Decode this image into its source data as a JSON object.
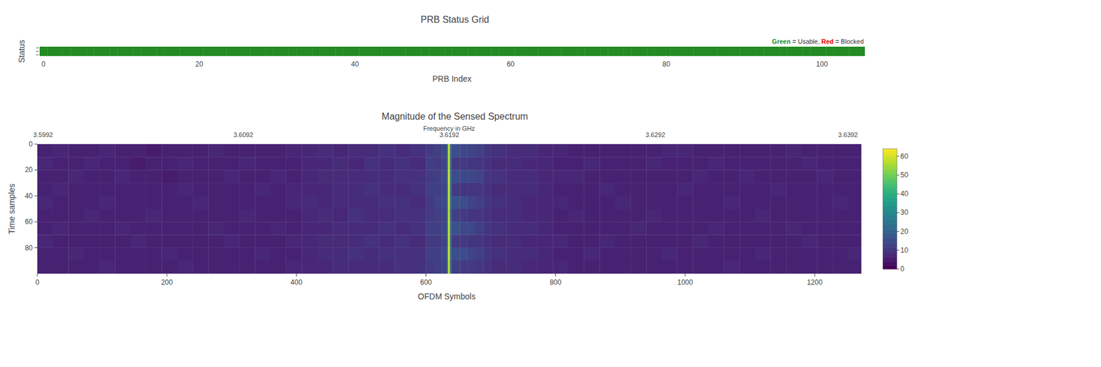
{
  "chart_data": [
    {
      "type": "heatmap",
      "title": "PRB Status Grid",
      "x_label": "PRB Index",
      "y_label": "Status",
      "x": [
        0,
        1,
        2,
        3,
        4,
        5,
        6,
        7,
        8,
        9,
        10,
        11,
        12,
        13,
        14,
        15,
        16,
        17,
        18,
        19,
        20,
        21,
        22,
        23,
        24,
        25,
        26,
        27,
        28,
        29,
        30,
        31,
        32,
        33,
        34,
        35,
        36,
        37,
        38,
        39,
        40,
        41,
        42,
        43,
        44,
        45,
        46,
        47,
        48,
        49,
        50,
        51,
        52,
        53,
        54,
        55,
        56,
        57,
        58,
        59,
        60,
        61,
        62,
        63,
        64,
        65,
        66,
        67,
        68,
        69,
        70,
        71,
        72,
        73,
        74,
        75,
        76,
        77,
        78,
        79,
        80,
        81,
        82,
        83,
        84,
        85,
        86,
        87,
        88,
        89,
        90,
        91,
        92,
        93,
        94,
        95,
        96,
        97,
        98,
        99,
        100,
        101,
        102,
        103,
        104,
        105
      ],
      "values": [
        1,
        1,
        1,
        1,
        1,
        1,
        1,
        1,
        1,
        1,
        1,
        1,
        1,
        1,
        1,
        1,
        1,
        1,
        1,
        1,
        1,
        1,
        1,
        1,
        1,
        1,
        1,
        1,
        1,
        1,
        1,
        1,
        1,
        1,
        1,
        1,
        1,
        1,
        1,
        1,
        1,
        1,
        1,
        1,
        1,
        1,
        1,
        1,
        1,
        1,
        1,
        1,
        1,
        1,
        1,
        1,
        1,
        1,
        1,
        1,
        1,
        1,
        1,
        1,
        1,
        1,
        1,
        1,
        1,
        1,
        1,
        1,
        1,
        1,
        1,
        1,
        1,
        1,
        1,
        1,
        1,
        1,
        1,
        1,
        1,
        1,
        1,
        1,
        1,
        1,
        1,
        1,
        1,
        1,
        1,
        1,
        1,
        1,
        1,
        1,
        1,
        1,
        1,
        1,
        1,
        1
      ],
      "xlim": [
        -0.5,
        105.5
      ],
      "xticks": [
        0,
        20,
        40,
        60,
        80,
        100
      ],
      "status_legend": [
        {
          "name": "Green",
          "label": "= Usable,",
          "color": "#228b22",
          "value": 1
        },
        {
          "name": "Red",
          "label": "= Blocked",
          "color": "#e00000",
          "value": 0
        }
      ],
      "legend": "top-right",
      "tick_labels": "x"
    },
    {
      "type": "heatmap",
      "title": "Magnitude of the Sensed Spectrum",
      "x_label": "OFDM Symbols",
      "x2_label": "Frequency in GHz",
      "y_label": "Time samples",
      "xlim": [
        0,
        1272
      ],
      "xticks": [
        0,
        200,
        400,
        600,
        800,
        1000,
        1200
      ],
      "x2lim": [
        3.5992,
        3.6392
      ],
      "x2ticks": [
        3.5992,
        3.6092,
        3.6192,
        3.6292,
        3.6392
      ],
      "ylim": [
        0,
        100
      ],
      "yticks": [
        0,
        20,
        40,
        60,
        80
      ],
      "x_edges": [
        0,
        24,
        48,
        72,
        96,
        120,
        144,
        168,
        192,
        216,
        240,
        264,
        288,
        312,
        336,
        360,
        384,
        408,
        432,
        456,
        480,
        504,
        528,
        552,
        576,
        600,
        612,
        624,
        632,
        634,
        637,
        640,
        652,
        664,
        676,
        688,
        700,
        724,
        748,
        772,
        796,
        820,
        844,
        868,
        892,
        916,
        940,
        964,
        988,
        1012,
        1036,
        1060,
        1084,
        1108,
        1132,
        1156,
        1180,
        1204,
        1228,
        1252,
        1272
      ],
      "y_edges": [
        0,
        10,
        20,
        30,
        40,
        50,
        60,
        70,
        80,
        90,
        100
      ],
      "z": [
        [
          6,
          7,
          6,
          6,
          7,
          6,
          6,
          5,
          6,
          6,
          6,
          7,
          6,
          6,
          6,
          6,
          7,
          7,
          8,
          7,
          8,
          8,
          9,
          8,
          9,
          11,
          12,
          14,
          22,
          58,
          22,
          15,
          14,
          13,
          12,
          10,
          9,
          8,
          8,
          7,
          7,
          6,
          6,
          6,
          6,
          6,
          6,
          7,
          7,
          6,
          6,
          6,
          6,
          6,
          6,
          7,
          6,
          6,
          6,
          6
        ],
        [
          7,
          6,
          6,
          7,
          6,
          6,
          5,
          6,
          6,
          7,
          6,
          6,
          6,
          7,
          6,
          6,
          6,
          7,
          7,
          8,
          7,
          9,
          8,
          9,
          8,
          12,
          11,
          13,
          21,
          57,
          21,
          11,
          11,
          10,
          10,
          9,
          8,
          8,
          7,
          7,
          6,
          6,
          7,
          6,
          6,
          6,
          7,
          6,
          6,
          6,
          7,
          6,
          6,
          6,
          6,
          6,
          7,
          6,
          6,
          6
        ],
        [
          6,
          6,
          7,
          6,
          6,
          7,
          6,
          6,
          5,
          6,
          6,
          6,
          7,
          6,
          6,
          7,
          6,
          7,
          8,
          8,
          8,
          8,
          8,
          9,
          9,
          11,
          12,
          14,
          22,
          59,
          23,
          15,
          14,
          14,
          13,
          10,
          9,
          8,
          8,
          7,
          7,
          7,
          6,
          6,
          6,
          6,
          6,
          6,
          6,
          7,
          6,
          6,
          7,
          6,
          6,
          6,
          6,
          7,
          6,
          6
        ],
        [
          6,
          7,
          6,
          6,
          6,
          6,
          6,
          6,
          6,
          7,
          6,
          6,
          6,
          6,
          7,
          6,
          7,
          7,
          7,
          8,
          8,
          9,
          8,
          8,
          9,
          12,
          12,
          13,
          21,
          58,
          22,
          11,
          10,
          10,
          10,
          9,
          8,
          8,
          8,
          7,
          6,
          6,
          6,
          7,
          6,
          6,
          6,
          6,
          7,
          6,
          6,
          6,
          6,
          6,
          7,
          6,
          6,
          6,
          6,
          6
        ],
        [
          7,
          6,
          6,
          6,
          7,
          6,
          6,
          6,
          6,
          6,
          7,
          6,
          6,
          6,
          6,
          6,
          7,
          8,
          7,
          8,
          8,
          8,
          9,
          9,
          8,
          11,
          13,
          14,
          22,
          58,
          22,
          16,
          15,
          13,
          12,
          10,
          9,
          8,
          7,
          7,
          7,
          6,
          6,
          6,
          7,
          6,
          6,
          6,
          6,
          6,
          6,
          7,
          6,
          6,
          6,
          6,
          6,
          6,
          7,
          6
        ],
        [
          6,
          6,
          6,
          7,
          6,
          6,
          6,
          7,
          6,
          6,
          6,
          6,
          6,
          7,
          6,
          6,
          6,
          7,
          8,
          7,
          9,
          8,
          8,
          9,
          9,
          11,
          12,
          13,
          21,
          57,
          21,
          12,
          11,
          10,
          10,
          9,
          8,
          8,
          7,
          7,
          6,
          7,
          6,
          6,
          6,
          6,
          7,
          6,
          6,
          6,
          6,
          6,
          6,
          7,
          6,
          6,
          6,
          6,
          6,
          6
        ],
        [
          6,
          7,
          6,
          6,
          6,
          7,
          6,
          6,
          6,
          6,
          6,
          7,
          6,
          6,
          6,
          7,
          6,
          7,
          7,
          8,
          8,
          8,
          9,
          8,
          9,
          12,
          12,
          14,
          22,
          58,
          22,
          16,
          14,
          14,
          12,
          10,
          9,
          8,
          8,
          7,
          6,
          6,
          6,
          6,
          6,
          7,
          6,
          6,
          6,
          6,
          7,
          6,
          6,
          6,
          6,
          7,
          6,
          6,
          6,
          6
        ],
        [
          7,
          6,
          6,
          6,
          6,
          6,
          7,
          6,
          6,
          6,
          6,
          6,
          7,
          6,
          6,
          6,
          7,
          7,
          8,
          8,
          8,
          9,
          8,
          9,
          8,
          11,
          11,
          13,
          21,
          58,
          21,
          11,
          11,
          10,
          10,
          9,
          8,
          8,
          7,
          7,
          7,
          6,
          6,
          7,
          6,
          6,
          6,
          6,
          6,
          7,
          6,
          6,
          6,
          6,
          6,
          6,
          7,
          6,
          6,
          6
        ],
        [
          6,
          6,
          7,
          6,
          6,
          6,
          6,
          6,
          7,
          6,
          6,
          6,
          6,
          6,
          7,
          6,
          6,
          7,
          8,
          8,
          9,
          8,
          9,
          9,
          9,
          12,
          12,
          14,
          22,
          59,
          22,
          15,
          15,
          13,
          12,
          10,
          9,
          8,
          8,
          7,
          6,
          6,
          7,
          6,
          6,
          6,
          6,
          7,
          6,
          6,
          6,
          6,
          6,
          7,
          6,
          6,
          6,
          6,
          6,
          7
        ],
        [
          6,
          6,
          6,
          6,
          7,
          6,
          6,
          6,
          6,
          7,
          6,
          6,
          6,
          6,
          6,
          6,
          7,
          7,
          7,
          8,
          8,
          8,
          8,
          9,
          9,
          11,
          12,
          13,
          21,
          57,
          21,
          12,
          11,
          11,
          10,
          9,
          8,
          8,
          7,
          7,
          7,
          6,
          6,
          6,
          6,
          6,
          6,
          6,
          6,
          6,
          6,
          7,
          6,
          6,
          6,
          6,
          6,
          6,
          6,
          6
        ]
      ],
      "zlim": [
        0,
        64
      ],
      "zticks": [
        0,
        10,
        20,
        30,
        40,
        50,
        60
      ]
    }
  ]
}
